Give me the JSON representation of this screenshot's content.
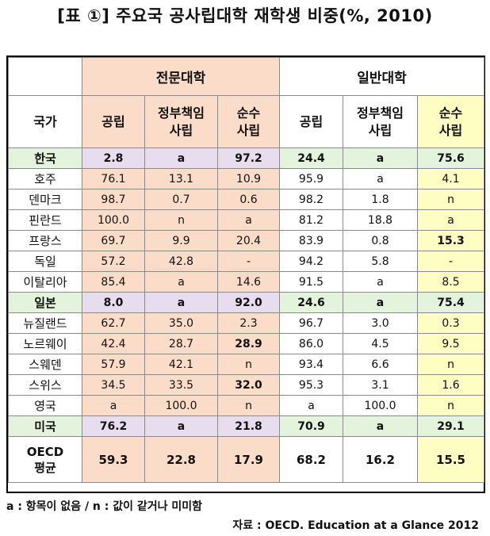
{
  "title": "[표 ①] 주요국 공사립대학 재학생 비중(%, 2010)",
  "groups": [
    "전문대학",
    "일반대학"
  ],
  "columns": {
    "country": "국가",
    "public": "공립",
    "gov_private_1": "정부책임",
    "gov_private_2": "사립",
    "indep_1": "순수",
    "indep_2": "사립"
  },
  "rows": [
    {
      "country": "한국",
      "v": [
        "2.8",
        "a",
        "97.2",
        "24.4",
        "a",
        "75.6"
      ]
    },
    {
      "country": "호주",
      "v": [
        "76.1",
        "13.1",
        "10.9",
        "95.9",
        "a",
        "4.1"
      ]
    },
    {
      "country": "덴마크",
      "v": [
        "98.7",
        "0.7",
        "0.6",
        "98.2",
        "1.8",
        "n"
      ]
    },
    {
      "country": "핀란드",
      "v": [
        "100.0",
        "n",
        "a",
        "81.2",
        "18.8",
        "a"
      ]
    },
    {
      "country": "프랑스",
      "v": [
        "69.7",
        "9.9",
        "20.4",
        "83.9",
        "0.8",
        "15.3"
      ]
    },
    {
      "country": "독일",
      "v": [
        "57.2",
        "42.8",
        "-",
        "94.2",
        "5.8",
        "-"
      ]
    },
    {
      "country": "이탈리아",
      "v": [
        "85.4",
        "a",
        "14.6",
        "91.5",
        "a",
        "8.5"
      ]
    },
    {
      "country": "일본",
      "v": [
        "8.0",
        "a",
        "92.0",
        "24.6",
        "a",
        "75.4"
      ]
    },
    {
      "country": "뉴질랜드",
      "v": [
        "62.7",
        "35.0",
        "2.3",
        "96.7",
        "3.0",
        "0.3"
      ]
    },
    {
      "country": "노르웨이",
      "v": [
        "42.4",
        "28.7",
        "28.9",
        "86.0",
        "4.5",
        "9.5"
      ]
    },
    {
      "country": "스웨덴",
      "v": [
        "57.9",
        "42.1",
        "n",
        "93.4",
        "6.6",
        "n"
      ]
    },
    {
      "country": "스위스",
      "v": [
        "34.5",
        "33.5",
        "32.0",
        "95.3",
        "3.1",
        "1.6"
      ]
    },
    {
      "country": "영국",
      "v": [
        "a",
        "100.0",
        "n",
        "a",
        "100.0",
        "n"
      ]
    },
    {
      "country": "미국",
      "v": [
        "76.2",
        "a",
        "21.8",
        "70.9",
        "a",
        "29.1"
      ]
    }
  ],
  "oecd": {
    "country_1": "OECD",
    "country_2": "평균",
    "v": [
      "59.3",
      "22.8",
      "17.9",
      "68.2",
      "16.2",
      "15.5"
    ]
  },
  "note": "a : 항목이 없음 / n : 값이 같거나 미미함",
  "source": "자료 : OECD. Education at a Glance 2012"
}
